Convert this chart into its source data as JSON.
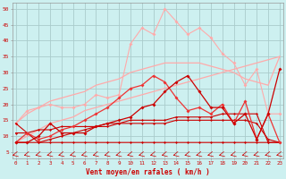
{
  "x": [
    0,
    1,
    2,
    3,
    4,
    5,
    6,
    7,
    8,
    9,
    10,
    11,
    12,
    13,
    14,
    15,
    16,
    17,
    18,
    19,
    20,
    21,
    22,
    23
  ],
  "line_pink_jagged": [
    14,
    18,
    19,
    20,
    19,
    19,
    20,
    23,
    22,
    23,
    39,
    44,
    42,
    50,
    46,
    42,
    44,
    41,
    36,
    33,
    26,
    31,
    17,
    17
  ],
  "line_pink_smooth1": [
    14,
    17,
    19,
    21,
    22,
    23,
    24,
    26,
    27,
    28,
    30,
    31,
    32,
    33,
    33,
    33,
    33,
    32,
    31,
    30,
    28,
    27,
    26,
    35
  ],
  "line_pink_smooth2": [
    8,
    10,
    12,
    14,
    15,
    16,
    18,
    19,
    20,
    21,
    22,
    23,
    24,
    25,
    26,
    27,
    28,
    29,
    30,
    31,
    32,
    33,
    34,
    35
  ],
  "line_red_jagged1": [
    8,
    11,
    9,
    10,
    12,
    13,
    15,
    17,
    19,
    22,
    25,
    26,
    29,
    27,
    22,
    18,
    19,
    17,
    20,
    14,
    21,
    9,
    17,
    8
  ],
  "line_red_jagged2": [
    8,
    8,
    10,
    14,
    11,
    11,
    11,
    13,
    14,
    15,
    16,
    19,
    20,
    24,
    27,
    29,
    24,
    19,
    19,
    14,
    17,
    9,
    17,
    31
  ],
  "line_dark_flat1": [
    8,
    8,
    8,
    9,
    10,
    11,
    12,
    13,
    14,
    14,
    15,
    15,
    15,
    15,
    16,
    16,
    16,
    16,
    17,
    17,
    17,
    17,
    8,
    8
  ],
  "line_dark_flat2": [
    11,
    11,
    12,
    12,
    13,
    13,
    13,
    13,
    13,
    14,
    14,
    14,
    14,
    14,
    15,
    15,
    15,
    15,
    15,
    15,
    15,
    14,
    9,
    8
  ],
  "line_dark_flat3": [
    14,
    11,
    8,
    8,
    8,
    8,
    8,
    8,
    8,
    8,
    8,
    8,
    8,
    8,
    8,
    8,
    8,
    8,
    8,
    8,
    8,
    8,
    8,
    8
  ],
  "background_color": "#cdf0f0",
  "grid_color": "#aacccc",
  "color_dark_red": "#cc0000",
  "color_medium_red": "#ee3333",
  "color_light_pink": "#ffaaaa",
  "color_lighter_pink": "#ffcccc",
  "xlabel": "Vent moyen/en rafales ( km/h )",
  "xlim": [
    -0.3,
    23.3
  ],
  "ylim": [
    3,
    52
  ],
  "yticks": [
    5,
    10,
    15,
    20,
    25,
    30,
    35,
    40,
    45,
    50
  ]
}
